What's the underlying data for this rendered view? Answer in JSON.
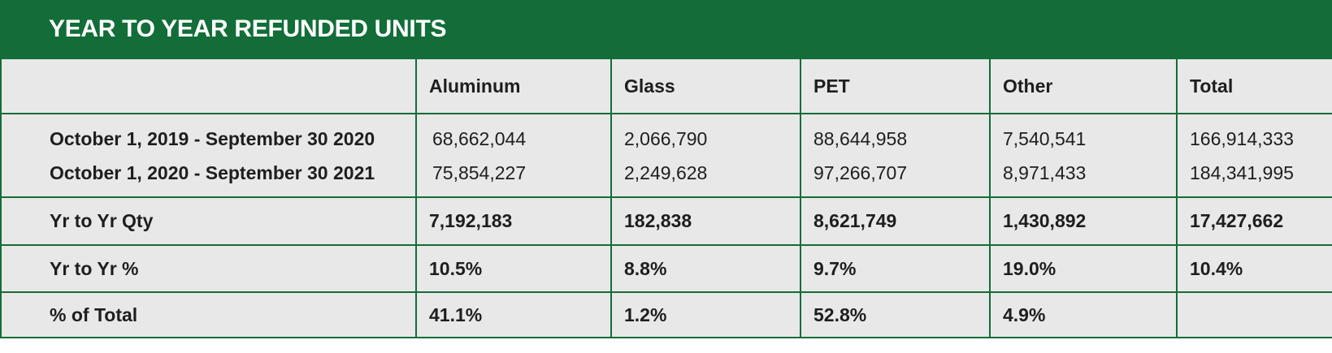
{
  "title": "YEAR TO YEAR REFUNDED UNITS",
  "colors": {
    "header_green": "#126d38",
    "table_bg": "#e8e8e8"
  },
  "columns": [
    "",
    "Aluminum",
    "Glass",
    "PET",
    "Other",
    "Total"
  ],
  "periods": [
    {
      "label": "October 1, 2019 - September 30  2020",
      "values": [
        "68,662,044",
        "2,066,790",
        "88,644,958",
        "7,540,541",
        "166,914,333"
      ]
    },
    {
      "label": "October 1, 2020 - September 30  2021",
      "values": [
        "75,854,227",
        "2,249,628",
        "97,266,707",
        "8,971,433",
        "184,341,995"
      ]
    }
  ],
  "summary_rows": [
    {
      "label": "Yr to Yr Qty",
      "values": [
        "7,192,183",
        "182,838",
        "8,621,749",
        "1,430,892",
        "17,427,662"
      ]
    },
    {
      "label": "Yr to Yr %",
      "values": [
        "10.5%",
        "8.8%",
        "9.7%",
        "19.0%",
        "10.4%"
      ]
    },
    {
      "label": "% of Total",
      "values": [
        "41.1%",
        "1.2%",
        "52.8%",
        "4.9%",
        ""
      ]
    }
  ]
}
